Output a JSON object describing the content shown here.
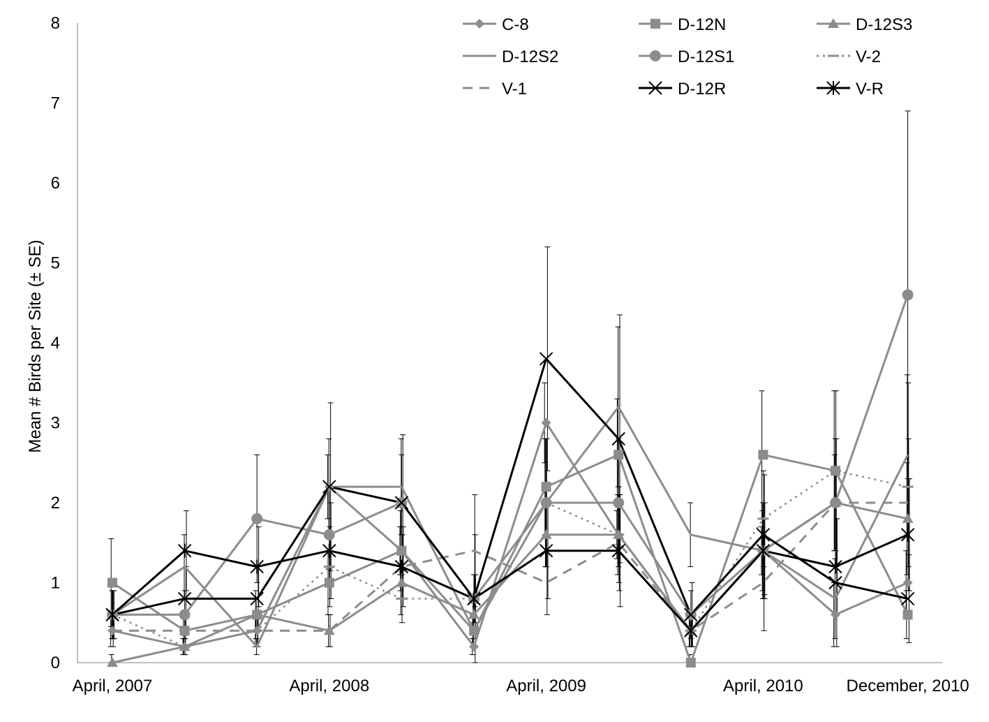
{
  "chart_data": {
    "type": "line",
    "title": "",
    "ylabel": "Mean # Birds per Site (± SE)",
    "xlabel": "",
    "ylim": [
      0,
      8
    ],
    "yticks": [
      "0",
      "1",
      "2",
      "3",
      "4",
      "5",
      "6",
      "7",
      "8"
    ],
    "x_tick_labels": [
      "April, 2007",
      "April, 2008",
      "April, 2009",
      "April, 2010",
      "December, 2010"
    ],
    "x_tick_label_positions": [
      0,
      3,
      6,
      9,
      11
    ],
    "grid": false,
    "legend_position": "top-right",
    "point_count": 12,
    "series": [
      {
        "name": "C-8",
        "color": "#8c8c8c",
        "marker": "diamond",
        "dash": "solid",
        "values": [
          0.4,
          0.2,
          0.4,
          2.2,
          1.4,
          0.2,
          3.0,
          1.6,
          0.4,
          1.4,
          0.6,
          1.0
        ],
        "errors": [
          0.2,
          0.1,
          0.2,
          0.4,
          0.3,
          0.1,
          0.5,
          0.3,
          0.2,
          0.3,
          0.4,
          0.4
        ]
      },
      {
        "name": "D-12N",
        "color": "#8c8c8c",
        "marker": "square",
        "dash": "solid",
        "values": [
          1.0,
          0.4,
          0.6,
          1.0,
          1.4,
          0.4,
          2.2,
          2.6,
          0.0,
          2.6,
          2.4,
          0.6
        ],
        "errors": [
          0.55,
          0.2,
          0.3,
          0.4,
          0.5,
          0.2,
          0.6,
          0.7,
          0.1,
          0.8,
          1.0,
          0.3
        ]
      },
      {
        "name": "D-12S3",
        "color": "#8c8c8c",
        "marker": "triangle",
        "dash": "solid",
        "values": [
          0.0,
          0.2,
          0.6,
          0.4,
          1.0,
          0.6,
          1.6,
          1.6,
          0.4,
          1.4,
          2.0,
          1.8
        ],
        "errors": [
          0.1,
          0.1,
          0.2,
          0.2,
          0.4,
          0.2,
          0.4,
          0.5,
          0.2,
          0.5,
          0.6,
          0.7
        ]
      },
      {
        "name": "D-12S2",
        "color": "#8c8c8c",
        "marker": "none",
        "dash": "solid",
        "values": [
          0.6,
          1.2,
          0.2,
          2.2,
          2.2,
          0.4,
          2.0,
          3.2,
          1.6,
          1.4,
          0.8,
          2.6
        ],
        "errors": [
          0.3,
          0.4,
          0.1,
          0.6,
          0.6,
          0.2,
          0.8,
          1.0,
          0.4,
          0.6,
          0.5,
          1.0
        ]
      },
      {
        "name": "D-12S1",
        "color": "#8c8c8c",
        "marker": "circle",
        "dash": "solid",
        "values": [
          0.6,
          0.6,
          1.8,
          1.6,
          2.0,
          0.8,
          2.0,
          2.0,
          0.6,
          1.4,
          2.0,
          4.6
        ],
        "errors": [
          0.3,
          0.3,
          0.8,
          0.6,
          0.6,
          0.3,
          0.8,
          0.8,
          0.3,
          0.6,
          0.8,
          2.3
        ]
      },
      {
        "name": "V-2",
        "color": "#8c8c8c",
        "marker": "dash",
        "dash": "dot",
        "values": [
          0.6,
          0.2,
          0.4,
          1.2,
          0.8,
          0.8,
          2.0,
          1.6,
          0.4,
          1.8,
          2.4,
          2.2
        ],
        "errors": [
          0.3,
          0.1,
          0.2,
          0.5,
          0.3,
          0.3,
          0.8,
          0.6,
          0.2,
          0.6,
          1.0,
          1.3
        ]
      },
      {
        "name": "V-1",
        "color": "#8c8c8c",
        "marker": "none",
        "dash": "dash",
        "values": [
          0.4,
          0.4,
          0.4,
          0.4,
          1.2,
          1.4,
          1.0,
          1.5,
          0.4,
          1.0,
          2.0,
          2.0
        ],
        "errors": [
          0.2,
          0.2,
          0.2,
          0.2,
          0.4,
          0.7,
          0.4,
          0.6,
          0.2,
          0.6,
          0.8,
          0.8
        ]
      },
      {
        "name": "D-12R",
        "color": "#000000",
        "marker": "x",
        "dash": "solid",
        "values": [
          0.6,
          0.8,
          0.8,
          2.2,
          2.0,
          0.8,
          3.8,
          2.8,
          0.6,
          1.6,
          1.0,
          0.8
        ],
        "errors": [
          0.3,
          0.4,
          0.4,
          1.05,
          0.85,
          0.8,
          1.4,
          1.55,
          0.4,
          0.75,
          0.8,
          0.55
        ]
      },
      {
        "name": "V-R",
        "color": "#000000",
        "marker": "star",
        "dash": "solid",
        "values": [
          0.6,
          1.4,
          1.2,
          1.4,
          1.2,
          0.8,
          1.4,
          1.4,
          0.4,
          1.4,
          1.2,
          1.6
        ],
        "errors": [
          0.3,
          0.5,
          0.5,
          0.6,
          0.5,
          0.3,
          0.6,
          0.7,
          0.2,
          0.6,
          0.6,
          0.7
        ]
      }
    ]
  }
}
